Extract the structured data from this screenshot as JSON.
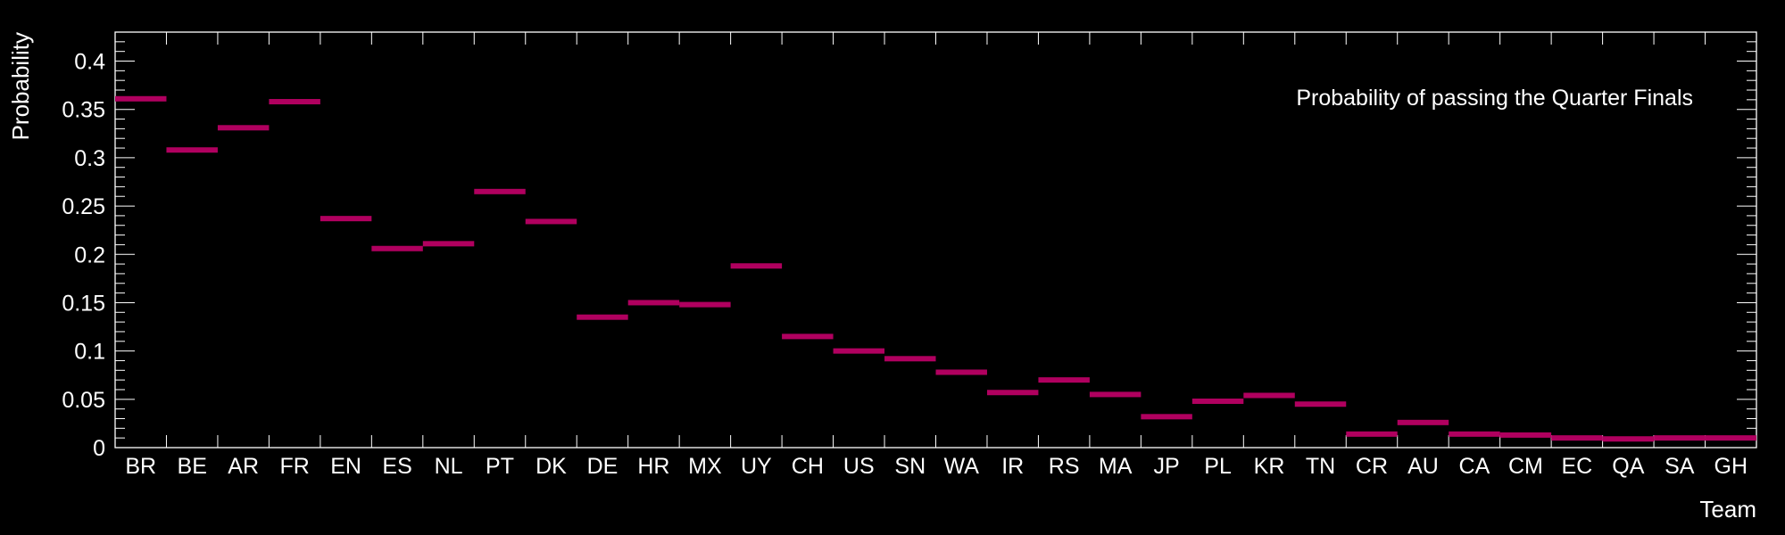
{
  "chart_data": {
    "type": "bar",
    "annotation": "Probability of passing the Quarter Finals",
    "xlabel": "Team",
    "ylabel": "Probability",
    "ylim": [
      0,
      0.43
    ],
    "yticks": [
      0,
      0.05,
      0.1,
      0.15,
      0.2,
      0.25,
      0.3,
      0.35,
      0.4
    ],
    "ytick_labels": [
      "0",
      "0.05",
      "0.1",
      "0.15",
      "0.2",
      "0.25",
      "0.3",
      "0.35",
      "0.4"
    ],
    "categories": [
      "BR",
      "BE",
      "AR",
      "FR",
      "EN",
      "ES",
      "NL",
      "PT",
      "DK",
      "DE",
      "HR",
      "MX",
      "UY",
      "CH",
      "US",
      "SN",
      "WA",
      "IR",
      "RS",
      "MA",
      "JP",
      "PL",
      "KR",
      "TN",
      "CR",
      "AU",
      "CA",
      "CM",
      "EC",
      "QA",
      "SA",
      "GH"
    ],
    "values": [
      0.361,
      0.308,
      0.331,
      0.358,
      0.237,
      0.206,
      0.211,
      0.265,
      0.234,
      0.135,
      0.15,
      0.148,
      0.188,
      0.115,
      0.1,
      0.092,
      0.078,
      0.057,
      0.07,
      0.055,
      0.032,
      0.048,
      0.054,
      0.045,
      0.014,
      0.026,
      0.014,
      0.013,
      0.01,
      0.009,
      0.01,
      0.01
    ],
    "bar_color": "#b0005f",
    "style": "horizontal-step-markers",
    "grid": false
  }
}
